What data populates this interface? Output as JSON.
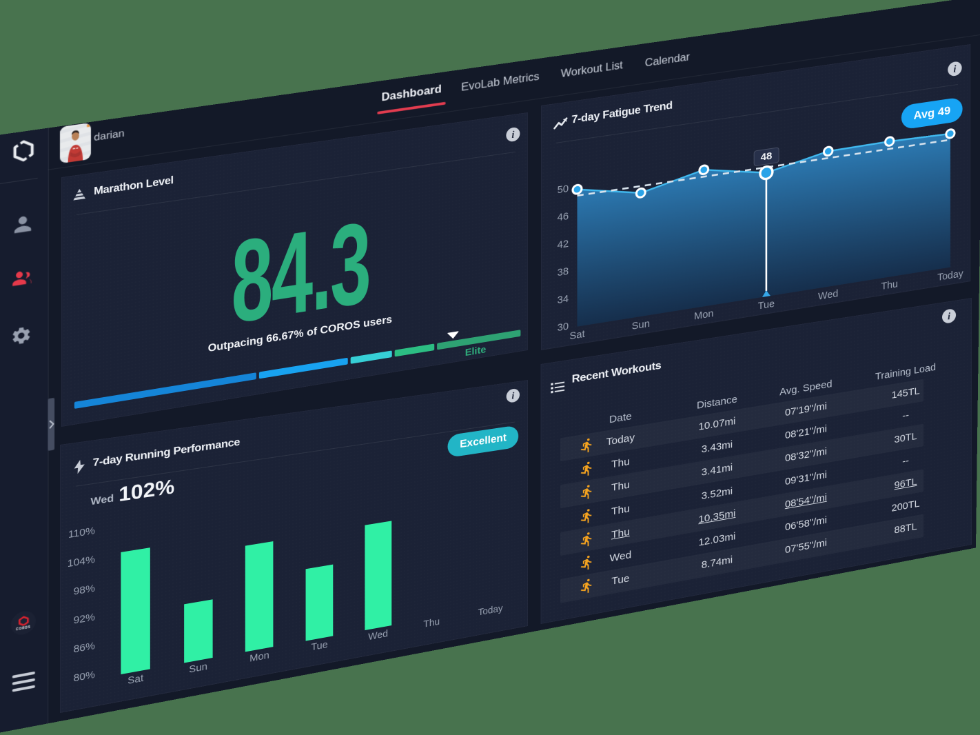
{
  "background_color": "#48734E",
  "accent_colors": {
    "red": "#E23C4F",
    "green_number": "#2BAE7D",
    "mint_bar": "#30F0A5",
    "blue_badge": "#17A4F4",
    "teal_badge": "#22B5C6",
    "line_blue": "#41B9EF",
    "runner_orange": "#F5A31F"
  },
  "sidebar": {
    "icons": [
      "coros-logo",
      "person",
      "group",
      "gear"
    ],
    "active_icon": "group",
    "bottom_badge": "COROS",
    "menu_icon": "hamburger"
  },
  "user": {
    "name": "darian"
  },
  "nav": {
    "items": [
      {
        "label": "Dashboard",
        "active": true
      },
      {
        "label": "EvoLab Metrics",
        "active": false
      },
      {
        "label": "Workout List",
        "active": false
      },
      {
        "label": "Calendar",
        "active": false
      }
    ]
  },
  "cards": {
    "marathon": {
      "title": "Marathon Level",
      "value": "84.3",
      "subtitle": "Outpacing 66.67% of COROS users",
      "level_label": "Elite",
      "marker_percent": 84.3,
      "scale_min": 0,
      "scale_max": 100,
      "segments": [
        {
          "from": 0,
          "to": 40,
          "color": "#1585D8"
        },
        {
          "from": 40,
          "to": 60.5,
          "color": "#18A2F0"
        },
        {
          "from": 60.5,
          "to": 70.5,
          "color": "#36CFD6"
        },
        {
          "from": 70.5,
          "to": 80.3,
          "color": "#2CBE83"
        },
        {
          "from": 80.3,
          "to": 100,
          "color": "#2EA273"
        }
      ]
    },
    "fatigue": {
      "title": "7-day Fatigue Trend",
      "badge": "Avg 49",
      "selected_point": {
        "label": "Tue",
        "value": 48
      },
      "chart_data": {
        "type": "area",
        "categories": [
          "Sat",
          "Sun",
          "Mon",
          "Tue",
          "Wed",
          "Thu",
          "Today"
        ],
        "values": [
          49.7,
          47.8,
          49.8,
          48,
          49.8,
          49.9,
          49.7
        ],
        "average": 49,
        "yticks": [
          30,
          34,
          38,
          42,
          46,
          50
        ],
        "ylim": [
          30,
          54
        ],
        "title": "7-day Fatigue Trend",
        "xlabel": "",
        "ylabel": "",
        "grid": false,
        "legend": null
      }
    },
    "performance": {
      "title": "7-day Running Performance",
      "badge": "Excellent",
      "highlight_label": "Wed",
      "highlight_value": "102%",
      "chart_data": {
        "type": "bar",
        "categories": [
          "Sat",
          "Sun",
          "Mon",
          "Tue",
          "Wed",
          "Thu",
          "Today"
        ],
        "values": [
          104.8,
          92.1,
          102.1,
          95.1,
          102.4,
          null,
          null
        ],
        "yticks": [
          "110%",
          "104%",
          "98%",
          "92%",
          "86%",
          "80%"
        ],
        "ylim": [
          80,
          110
        ],
        "title": "7-day Running Performance",
        "xlabel": "",
        "ylabel": "",
        "grid": false
      }
    },
    "workouts": {
      "title": "Recent Workouts",
      "chart_data": {
        "type": "table",
        "columns": [
          "Date",
          "Distance",
          "Avg. Speed",
          "Training Load"
        ],
        "rows": [
          {
            "date": "Today",
            "distance": "10.07mi",
            "speed": "07'19\"/mi",
            "load": "145TL",
            "underline": false
          },
          {
            "date": "Thu",
            "distance": "3.43mi",
            "speed": "08'21\"/mi",
            "load": "--",
            "underline": false
          },
          {
            "date": "Thu",
            "distance": "3.41mi",
            "speed": "08'32\"/mi",
            "load": "30TL",
            "underline": false
          },
          {
            "date": "Thu",
            "distance": "3.52mi",
            "speed": "09'31\"/mi",
            "load": "--",
            "underline": false
          },
          {
            "date": "Thu",
            "distance": "10.35mi",
            "speed": "08'54\"/mi",
            "load": "96TL",
            "underline": true
          },
          {
            "date": "Wed",
            "distance": "12.03mi",
            "speed": "06'58\"/mi",
            "load": "200TL",
            "underline": false
          },
          {
            "date": "Tue",
            "distance": "8.74mi",
            "speed": "07'55\"/mi",
            "load": "88TL",
            "underline": false
          }
        ]
      }
    }
  }
}
